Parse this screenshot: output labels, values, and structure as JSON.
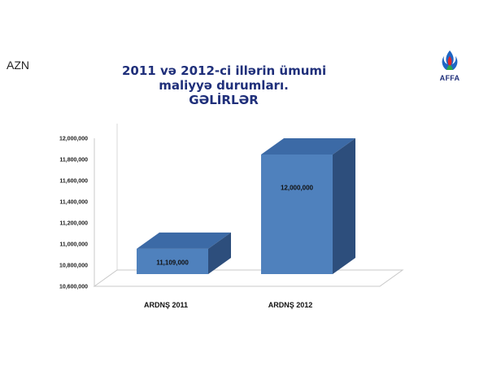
{
  "unit_label": "AZN",
  "title_lines": [
    "2011 və 2012-ci illərin ümumi",
    "maliyyə durumları.",
    "GƏLİRLƏR"
  ],
  "logo": {
    "text": "AFFA",
    "icon": "affa-flame-logo"
  },
  "colors": {
    "bar_front": "#4f81bd",
    "bar_top": "#3c6aa6",
    "bar_side": "#2d4e7c",
    "title": "#1f2f7a"
  },
  "chart_data": {
    "type": "bar",
    "categories": [
      "ARDNŞ 2011",
      "ARDNŞ 2012"
    ],
    "values": [
      11109000,
      12000000
    ],
    "value_labels": [
      "11,109,000",
      "12,000,000"
    ],
    "ylim": [
      10600000,
      12000000
    ],
    "y_ticks": [
      10600000,
      10800000,
      11000000,
      11200000,
      11400000,
      11600000,
      11800000,
      12000000
    ],
    "y_tick_labels": [
      "10,600,000",
      "10,800,000",
      "11,000,000",
      "11,200,000",
      "11,400,000",
      "11,600,000",
      "11,800,000",
      "12,000,000"
    ],
    "grid": false,
    "style": "3d"
  }
}
